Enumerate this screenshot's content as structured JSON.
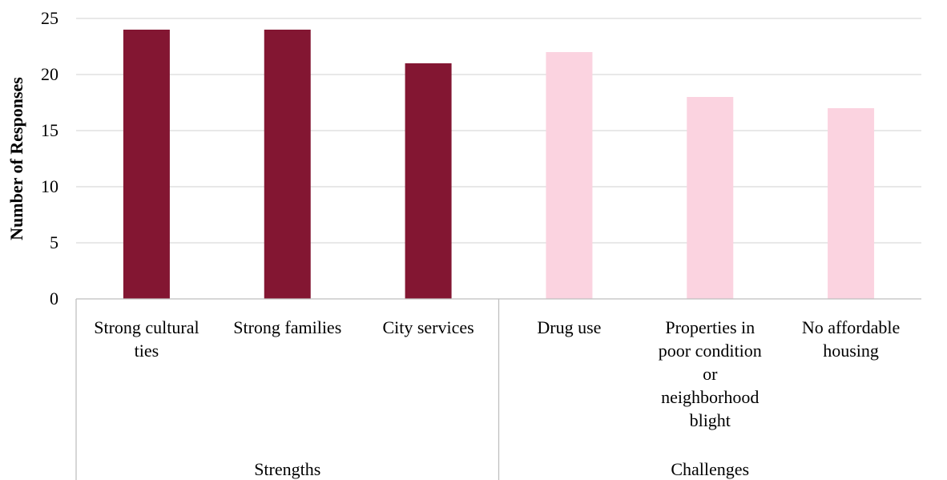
{
  "chart_data": {
    "type": "bar",
    "title": "",
    "xlabel": "",
    "ylabel": "Number of Responses",
    "ylim": [
      0,
      25
    ],
    "yticks": [
      0,
      5,
      10,
      15,
      20,
      25
    ],
    "grid": true,
    "groups": [
      {
        "name": "Strengths",
        "color": "#831632",
        "categories": [
          {
            "label": "Strong cultural ties",
            "lines": [
              "Strong cultural",
              "ties"
            ],
            "value": 24
          },
          {
            "label": "Strong families",
            "lines": [
              "Strong families"
            ],
            "value": 24
          },
          {
            "label": "City services",
            "lines": [
              "City services"
            ],
            "value": 21
          }
        ]
      },
      {
        "name": "Challenges",
        "color": "#fbd3e0",
        "categories": [
          {
            "label": "Drug use",
            "lines": [
              "Drug use"
            ],
            "value": 22
          },
          {
            "label": "Properties in poor condition or neighborhood blight",
            "lines": [
              "Properties in",
              "poor condition",
              "or",
              "neighborhood",
              "blight"
            ],
            "value": 18
          },
          {
            "label": "No affordable housing",
            "lines": [
              "No affordable",
              "housing"
            ],
            "value": 17
          }
        ]
      }
    ]
  }
}
